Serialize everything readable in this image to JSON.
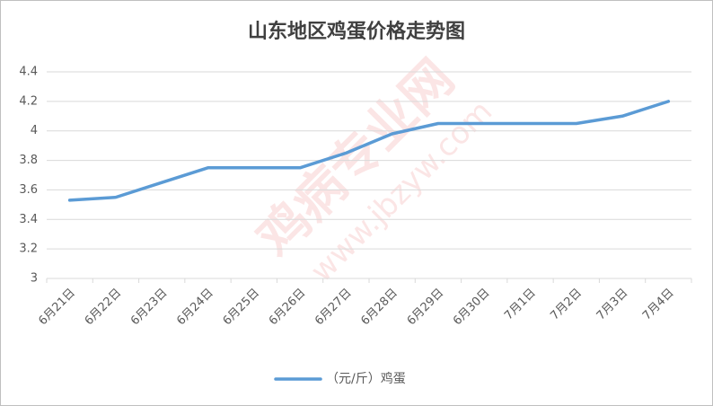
{
  "chart_data": {
    "type": "line",
    "title": "山东地区鸡蛋价格走势图",
    "categories": [
      "6月21日",
      "6月22日",
      "6月23日",
      "6月24日",
      "6月25日",
      "6月26日",
      "6月27日",
      "6月28日",
      "6月29日",
      "6月30日",
      "7月1日",
      "7月2日",
      "7月3日",
      "7月4日"
    ],
    "series": [
      {
        "name": "（元/斤）鸡蛋",
        "color": "#5b9bd5",
        "values": [
          3.53,
          3.55,
          3.65,
          3.75,
          3.75,
          3.75,
          3.85,
          3.98,
          4.05,
          4.05,
          4.05,
          4.05,
          4.1,
          4.2
        ]
      }
    ],
    "ylim": [
      3,
      4.4
    ],
    "yticks": [
      3,
      3.2,
      3.4,
      3.6,
      3.8,
      4,
      4.2,
      4.4
    ],
    "grid": true,
    "legend": "bottom",
    "watermark": "鸡病专业网",
    "watermark_url": "www.jbzyw.com"
  }
}
